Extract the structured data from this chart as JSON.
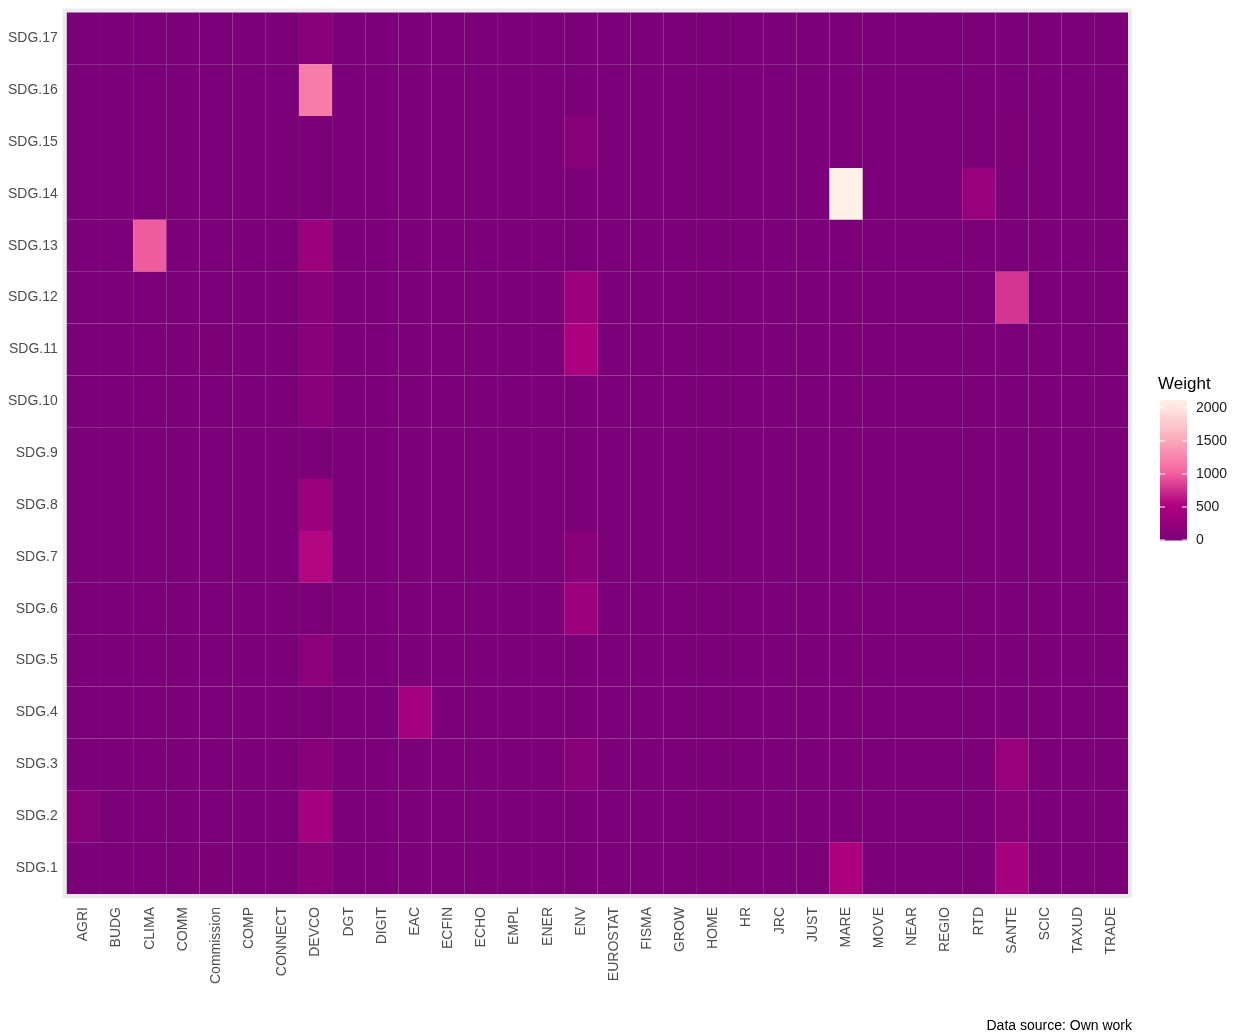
{
  "chart_data": {
    "type": "heatmap",
    "clabel": "Weight",
    "annotations": [
      "Data source: Own work"
    ],
    "categories": [
      "AGRI",
      "BUDG",
      "CLIMA",
      "COMM",
      "Commission",
      "COMP",
      "CONNECT",
      "DEVCO",
      "DGT",
      "DIGIT",
      "EAC",
      "ECFIN",
      "ECHO",
      "EMPL",
      "ENER",
      "ENV",
      "EUROSTAT",
      "FISMA",
      "GROW",
      "HOME",
      "HR",
      "JRC",
      "JUST",
      "MARE",
      "MOVE",
      "NEAR",
      "REGIO",
      "RTD",
      "SANTE",
      "SCIC",
      "TAXUD",
      "TRADE"
    ],
    "y_categories": [
      "SDG.17",
      "SDG.16",
      "SDG.15",
      "SDG.14",
      "SDG.13",
      "SDG.12",
      "SDG.11",
      "SDG.10",
      "SDG.9",
      "SDG.8",
      "SDG.7",
      "SDG.6",
      "SDG.5",
      "SDG.4",
      "SDG.3",
      "SDG.2",
      "SDG.1"
    ],
    "cells": [
      [
        0,
        0,
        0,
        0,
        0,
        0,
        0,
        150,
        0,
        0,
        0,
        0,
        0,
        0,
        0,
        0,
        0,
        0,
        0,
        0,
        0,
        0,
        0,
        0,
        0,
        0,
        0,
        0,
        0,
        0,
        0,
        0
      ],
      [
        0,
        0,
        0,
        0,
        0,
        0,
        0,
        1200,
        0,
        0,
        0,
        0,
        0,
        0,
        0,
        0,
        0,
        0,
        0,
        0,
        0,
        0,
        0,
        0,
        0,
        0,
        0,
        0,
        0,
        0,
        0,
        0
      ],
      [
        0,
        0,
        0,
        0,
        0,
        0,
        0,
        0,
        0,
        0,
        0,
        0,
        0,
        0,
        0,
        130,
        0,
        0,
        0,
        0,
        0,
        0,
        0,
        0,
        0,
        0,
        0,
        0,
        50,
        0,
        0,
        0
      ],
      [
        0,
        0,
        0,
        0,
        0,
        0,
        0,
        0,
        0,
        0,
        0,
        0,
        0,
        0,
        0,
        0,
        0,
        0,
        0,
        0,
        0,
        0,
        0,
        2120,
        0,
        0,
        0,
        300,
        0,
        0,
        0,
        0
      ],
      [
        0,
        0,
        1000,
        0,
        0,
        0,
        0,
        330,
        0,
        0,
        0,
        0,
        0,
        0,
        0,
        0,
        0,
        0,
        0,
        0,
        0,
        0,
        0,
        0,
        0,
        0,
        0,
        0,
        0,
        0,
        0,
        0
      ],
      [
        0,
        0,
        0,
        0,
        0,
        0,
        0,
        130,
        0,
        0,
        0,
        0,
        0,
        0,
        0,
        330,
        0,
        0,
        0,
        0,
        0,
        0,
        0,
        0,
        0,
        0,
        0,
        0,
        800,
        0,
        0,
        0
      ],
      [
        0,
        0,
        0,
        0,
        30,
        0,
        0,
        130,
        0,
        0,
        0,
        0,
        0,
        0,
        0,
        500,
        0,
        0,
        0,
        0,
        0,
        0,
        0,
        0,
        0,
        0,
        0,
        0,
        0,
        0,
        0,
        0
      ],
      [
        0,
        0,
        0,
        0,
        0,
        0,
        0,
        130,
        0,
        0,
        0,
        0,
        0,
        0,
        0,
        0,
        0,
        0,
        0,
        0,
        0,
        0,
        0,
        0,
        0,
        0,
        0,
        0,
        0,
        0,
        0,
        0
      ],
      [
        0,
        0,
        0,
        0,
        0,
        0,
        0,
        0,
        0,
        0,
        0,
        0,
        0,
        0,
        0,
        0,
        0,
        0,
        0,
        0,
        0,
        0,
        0,
        0,
        0,
        0,
        0,
        0,
        0,
        0,
        0,
        0
      ],
      [
        0,
        0,
        0,
        0,
        0,
        0,
        0,
        330,
        0,
        0,
        0,
        0,
        0,
        0,
        0,
        0,
        0,
        0,
        0,
        0,
        0,
        0,
        0,
        0,
        0,
        0,
        0,
        0,
        0,
        0,
        0,
        0
      ],
      [
        0,
        0,
        0,
        0,
        0,
        0,
        0,
        560,
        0,
        0,
        0,
        0,
        0,
        0,
        0,
        150,
        0,
        0,
        0,
        0,
        0,
        0,
        0,
        0,
        0,
        0,
        0,
        0,
        0,
        0,
        0,
        0
      ],
      [
        0,
        0,
        0,
        0,
        0,
        0,
        0,
        0,
        0,
        0,
        0,
        0,
        0,
        0,
        0,
        340,
        0,
        0,
        0,
        0,
        0,
        0,
        0,
        0,
        0,
        0,
        0,
        0,
        0,
        0,
        0,
        0
      ],
      [
        0,
        0,
        0,
        0,
        0,
        0,
        0,
        180,
        0,
        0,
        0,
        0,
        0,
        0,
        0,
        0,
        0,
        0,
        0,
        0,
        0,
        0,
        0,
        0,
        0,
        0,
        0,
        0,
        0,
        0,
        0,
        0
      ],
      [
        0,
        0,
        0,
        0,
        0,
        0,
        0,
        0,
        0,
        0,
        420,
        0,
        0,
        0,
        0,
        0,
        0,
        0,
        0,
        0,
        0,
        0,
        0,
        0,
        0,
        0,
        0,
        0,
        0,
        0,
        0,
        0
      ],
      [
        0,
        0,
        0,
        0,
        0,
        0,
        0,
        130,
        0,
        0,
        0,
        0,
        0,
        0,
        0,
        130,
        0,
        0,
        0,
        0,
        0,
        0,
        0,
        0,
        0,
        0,
        0,
        0,
        300,
        0,
        0,
        0
      ],
      [
        100,
        0,
        0,
        0,
        0,
        0,
        0,
        420,
        0,
        0,
        0,
        0,
        0,
        0,
        0,
        0,
        0,
        0,
        0,
        0,
        0,
        0,
        0,
        0,
        0,
        0,
        0,
        0,
        150,
        0,
        0,
        0
      ],
      [
        0,
        0,
        0,
        0,
        30,
        0,
        0,
        120,
        0,
        0,
        0,
        0,
        0,
        0,
        0,
        0,
        0,
        0,
        0,
        0,
        0,
        0,
        0,
        500,
        0,
        0,
        0,
        0,
        420,
        0,
        0,
        0
      ]
    ],
    "clim": [
      0,
      2120
    ],
    "cticks": [
      0,
      500,
      1000,
      1500,
      2000
    ]
  }
}
